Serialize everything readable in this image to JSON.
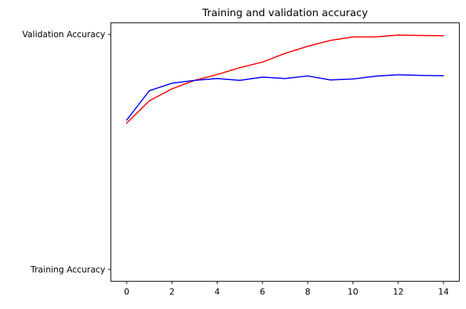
{
  "chart_data": {
    "type": "line",
    "title": "Training and validation accuracy",
    "xlabel": "",
    "ylabel": "",
    "x": [
      0,
      1,
      2,
      3,
      4,
      5,
      6,
      7,
      8,
      9,
      10,
      11,
      12,
      13,
      14
    ],
    "x_ticks": [
      0,
      2,
      4,
      6,
      8,
      10,
      12,
      14
    ],
    "xlim": [
      -0.7,
      14.7
    ],
    "y_ticks": [
      {
        "value": 0,
        "label": "Training Accuracy"
      },
      {
        "value": 1,
        "label": "Validation Accuracy"
      }
    ],
    "ylim": [
      -0.05,
      1.05
    ],
    "grid": false,
    "legend": "none",
    "series": [
      {
        "color": "#ff0000",
        "values": [
          0.623,
          0.718,
          0.769,
          0.805,
          0.83,
          0.859,
          0.883,
          0.92,
          0.95,
          0.975,
          0.99,
          0.99,
          0.998,
          0.996,
          0.995
        ]
      },
      {
        "color": "#0000ff",
        "values": [
          0.636,
          0.761,
          0.793,
          0.805,
          0.813,
          0.805,
          0.819,
          0.813,
          0.824,
          0.807,
          0.811,
          0.823,
          0.829,
          0.826,
          0.825
        ]
      }
    ]
  }
}
